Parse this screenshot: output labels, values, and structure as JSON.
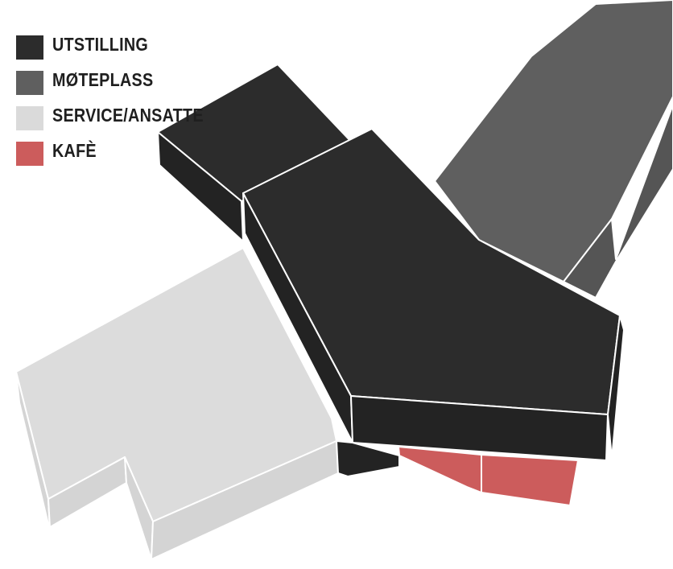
{
  "legend": {
    "items": [
      {
        "label": "UTSTILLING",
        "color": "#2c2c2c"
      },
      {
        "label": "MØTEPLASS",
        "color": "#5f5f5f"
      },
      {
        "label": "SERVICE/ANSATTE",
        "color": "#dadada"
      },
      {
        "label": "KAFÈ",
        "color": "#cc5c5c"
      }
    ]
  },
  "colors": {
    "utstilling_top": "#2c2c2c",
    "utstilling_side": "#232323",
    "moteplass_top": "#5f5f5f",
    "moteplass_side": "#555555",
    "service_top": "#dcdcdc",
    "service_side": "#d4d4d4",
    "kafe": "#cc5c5c",
    "edge": "#ffffff"
  }
}
